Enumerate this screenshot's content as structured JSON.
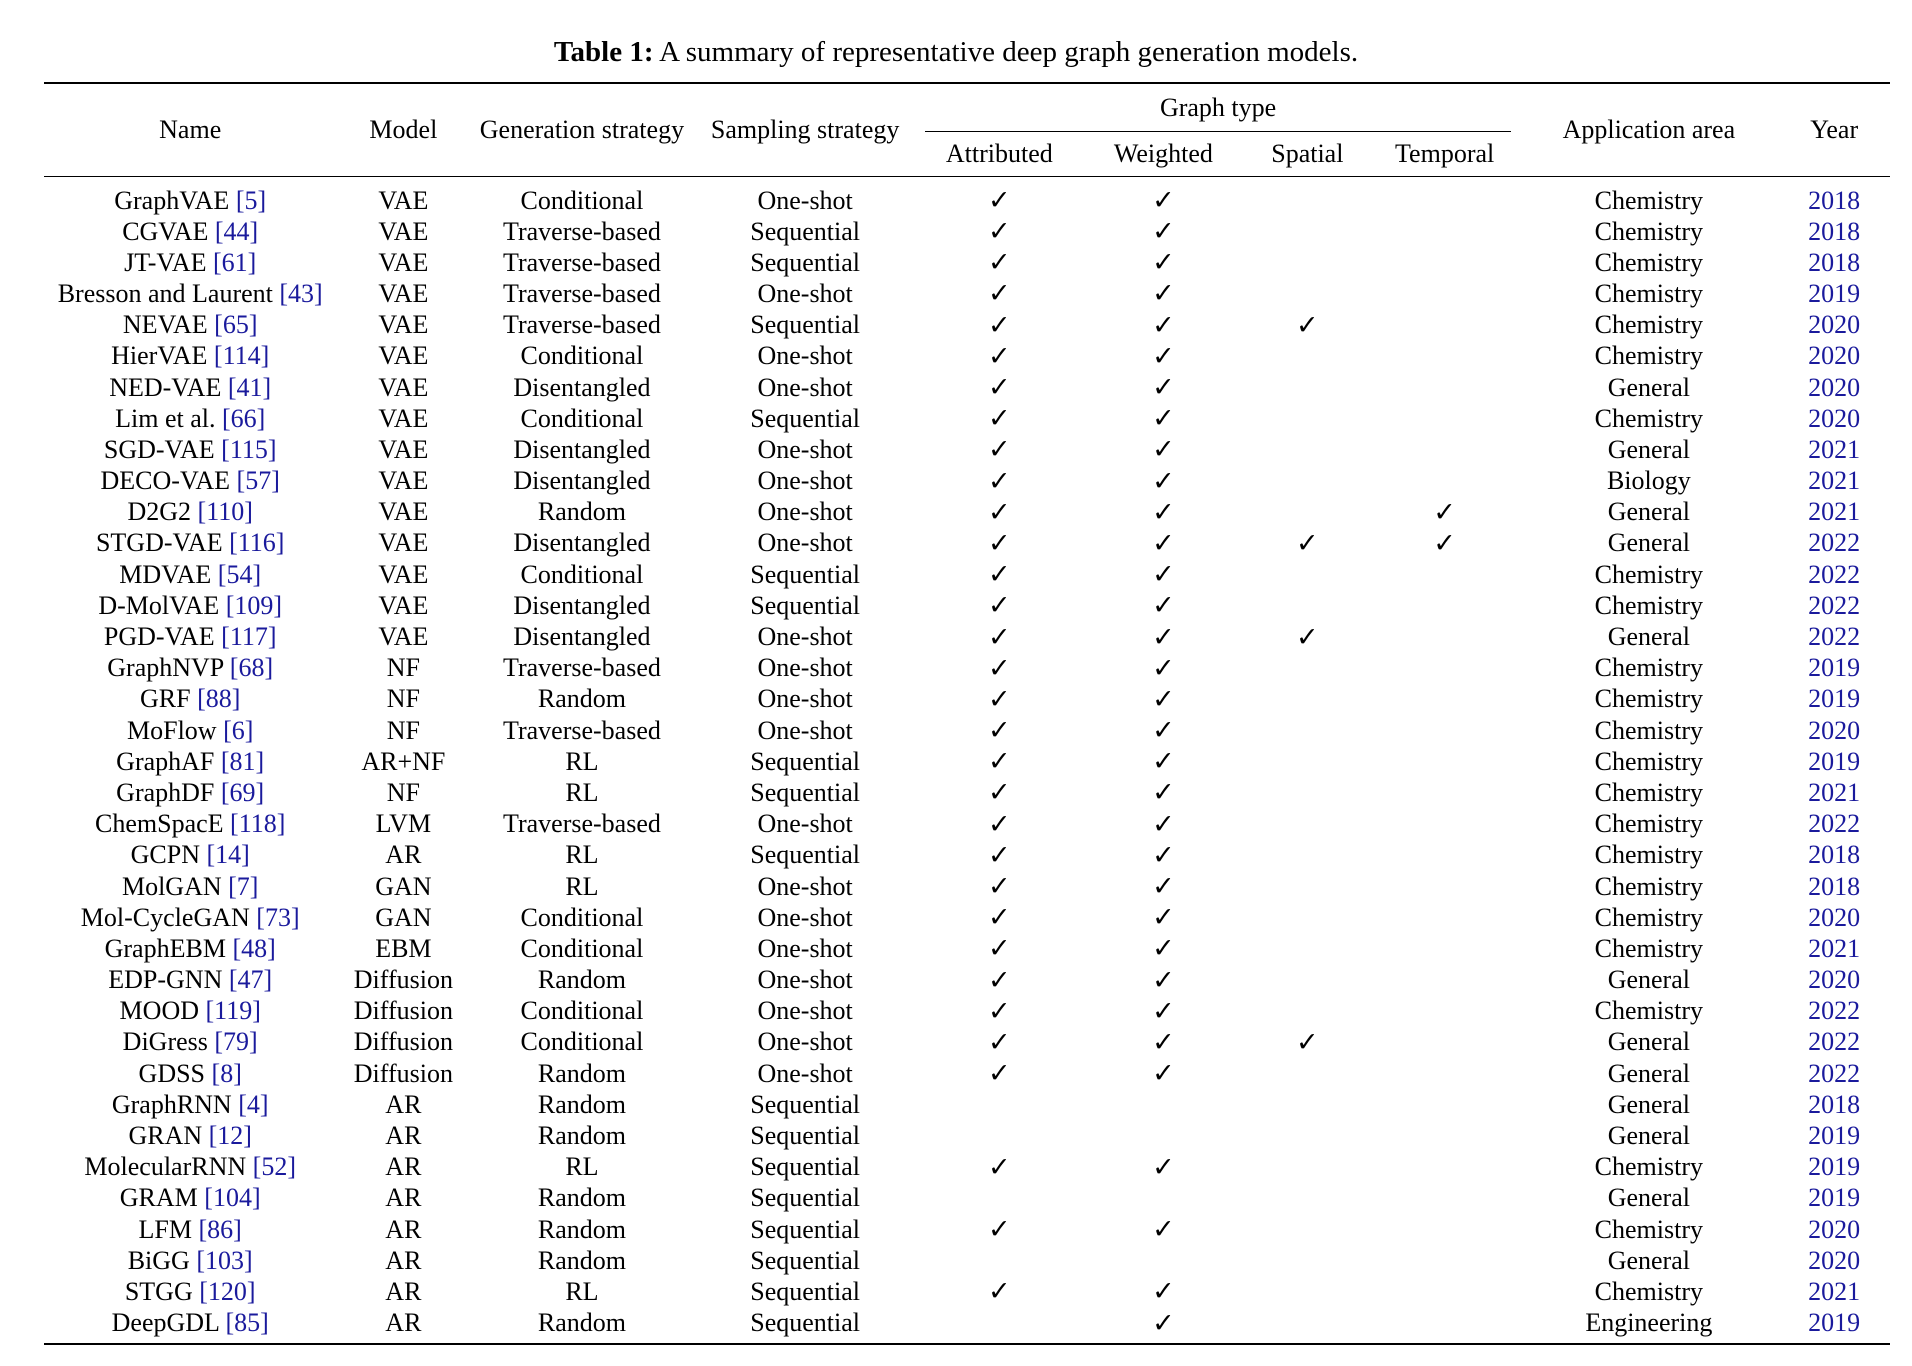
{
  "caption": {
    "label": "Table 1:",
    "text": "A summary of representative deep graph generation models."
  },
  "headers": {
    "name": "Name",
    "model": "Model",
    "generation": "Generation strategy",
    "sampling": "Sampling strategy",
    "graph_type": "Graph type",
    "attributed": "Attributed",
    "weighted": "Weighted",
    "spatial": "Spatial",
    "temporal": "Temporal",
    "application": "Application area",
    "year": "Year"
  },
  "check_symbol": "✓",
  "rows": [
    {
      "name": "GraphVAE",
      "ref": "[5]",
      "model": "VAE",
      "gen": "Conditional",
      "samp": "One-shot",
      "attr": true,
      "weight": true,
      "spatial": false,
      "temporal": false,
      "app": "Chemistry",
      "year": "2018"
    },
    {
      "name": "CGVAE",
      "ref": "[44]",
      "model": "VAE",
      "gen": "Traverse-based",
      "samp": "Sequential",
      "attr": true,
      "weight": true,
      "spatial": false,
      "temporal": false,
      "app": "Chemistry",
      "year": "2018"
    },
    {
      "name": "JT-VAE",
      "ref": "[61]",
      "model": "VAE",
      "gen": "Traverse-based",
      "samp": "Sequential",
      "attr": true,
      "weight": true,
      "spatial": false,
      "temporal": false,
      "app": "Chemistry",
      "year": "2018"
    },
    {
      "name": "Bresson and Laurent",
      "ref": "[43]",
      "model": "VAE",
      "gen": "Traverse-based",
      "samp": "One-shot",
      "attr": true,
      "weight": true,
      "spatial": false,
      "temporal": false,
      "app": "Chemistry",
      "year": "2019"
    },
    {
      "name": "NEVAE",
      "ref": "[65]",
      "model": "VAE",
      "gen": "Traverse-based",
      "samp": "Sequential",
      "attr": true,
      "weight": true,
      "spatial": true,
      "temporal": false,
      "app": "Chemistry",
      "year": "2020"
    },
    {
      "name": "HierVAE",
      "ref": "[114]",
      "model": "VAE",
      "gen": "Conditional",
      "samp": "One-shot",
      "attr": true,
      "weight": true,
      "spatial": false,
      "temporal": false,
      "app": "Chemistry",
      "year": "2020"
    },
    {
      "name": "NED-VAE",
      "ref": "[41]",
      "model": "VAE",
      "gen": "Disentangled",
      "samp": "One-shot",
      "attr": true,
      "weight": true,
      "spatial": false,
      "temporal": false,
      "app": "General",
      "year": "2020"
    },
    {
      "name": "Lim et al.",
      "ref": "[66]",
      "model": "VAE",
      "gen": "Conditional",
      "samp": "Sequential",
      "attr": true,
      "weight": true,
      "spatial": false,
      "temporal": false,
      "app": "Chemistry",
      "year": "2020"
    },
    {
      "name": "SGD-VAE",
      "ref": "[115]",
      "model": "VAE",
      "gen": "Disentangled",
      "samp": "One-shot",
      "attr": true,
      "weight": true,
      "spatial": false,
      "temporal": false,
      "app": "General",
      "year": "2021"
    },
    {
      "name": "DECO-VAE",
      "ref": "[57]",
      "model": "VAE",
      "gen": "Disentangled",
      "samp": "One-shot",
      "attr": true,
      "weight": true,
      "spatial": false,
      "temporal": false,
      "app": "Biology",
      "year": "2021"
    },
    {
      "name": "D2G2",
      "ref": "[110]",
      "model": "VAE",
      "gen": "Random",
      "samp": "One-shot",
      "attr": true,
      "weight": true,
      "spatial": false,
      "temporal": true,
      "app": "General",
      "year": "2021"
    },
    {
      "name": "STGD-VAE",
      "ref": "[116]",
      "model": "VAE",
      "gen": "Disentangled",
      "samp": "One-shot",
      "attr": true,
      "weight": true,
      "spatial": true,
      "temporal": true,
      "app": "General",
      "year": "2022"
    },
    {
      "name": "MDVAE",
      "ref": "[54]",
      "model": "VAE",
      "gen": "Conditional",
      "samp": "Sequential",
      "attr": true,
      "weight": true,
      "spatial": false,
      "temporal": false,
      "app": "Chemistry",
      "year": "2022"
    },
    {
      "name": "D-MolVAE",
      "ref": "[109]",
      "model": "VAE",
      "gen": "Disentangled",
      "samp": "Sequential",
      "attr": true,
      "weight": true,
      "spatial": false,
      "temporal": false,
      "app": "Chemistry",
      "year": "2022"
    },
    {
      "name": "PGD-VAE",
      "ref": "[117]",
      "model": "VAE",
      "gen": "Disentangled",
      "samp": "One-shot",
      "attr": true,
      "weight": true,
      "spatial": true,
      "temporal": false,
      "app": "General",
      "year": "2022"
    },
    {
      "name": "GraphNVP",
      "ref": "[68]",
      "model": "NF",
      "gen": "Traverse-based",
      "samp": "One-shot",
      "attr": true,
      "weight": true,
      "spatial": false,
      "temporal": false,
      "app": "Chemistry",
      "year": "2019"
    },
    {
      "name": "GRF",
      "ref": "[88]",
      "model": "NF",
      "gen": "Random",
      "samp": "One-shot",
      "attr": true,
      "weight": true,
      "spatial": false,
      "temporal": false,
      "app": "Chemistry",
      "year": "2019"
    },
    {
      "name": "MoFlow",
      "ref": "[6]",
      "model": "NF",
      "gen": "Traverse-based",
      "samp": "One-shot",
      "attr": true,
      "weight": true,
      "spatial": false,
      "temporal": false,
      "app": "Chemistry",
      "year": "2020"
    },
    {
      "name": "GraphAF",
      "ref": "[81]",
      "model": "AR+NF",
      "gen": "RL",
      "samp": "Sequential",
      "attr": true,
      "weight": true,
      "spatial": false,
      "temporal": false,
      "app": "Chemistry",
      "year": "2019"
    },
    {
      "name": "GraphDF",
      "ref": "[69]",
      "model": "NF",
      "gen": "RL",
      "samp": "Sequential",
      "attr": true,
      "weight": true,
      "spatial": false,
      "temporal": false,
      "app": "Chemistry",
      "year": "2021"
    },
    {
      "name": "ChemSpacE",
      "ref": "[118]",
      "model": "LVM",
      "gen": "Traverse-based",
      "samp": "One-shot",
      "attr": true,
      "weight": true,
      "spatial": false,
      "temporal": false,
      "app": "Chemistry",
      "year": "2022"
    },
    {
      "name": "GCPN",
      "ref": "[14]",
      "model": "AR",
      "gen": "RL",
      "samp": "Sequential",
      "attr": true,
      "weight": true,
      "spatial": false,
      "temporal": false,
      "app": "Chemistry",
      "year": "2018"
    },
    {
      "name": "MolGAN",
      "ref": "[7]",
      "model": "GAN",
      "gen": "RL",
      "samp": "One-shot",
      "attr": true,
      "weight": true,
      "spatial": false,
      "temporal": false,
      "app": "Chemistry",
      "year": "2018"
    },
    {
      "name": "Mol-CycleGAN",
      "ref": "[73]",
      "model": "GAN",
      "gen": "Conditional",
      "samp": "One-shot",
      "attr": true,
      "weight": true,
      "spatial": false,
      "temporal": false,
      "app": "Chemistry",
      "year": "2020"
    },
    {
      "name": "GraphEBM",
      "ref": "[48]",
      "model": "EBM",
      "gen": "Conditional",
      "samp": "One-shot",
      "attr": true,
      "weight": true,
      "spatial": false,
      "temporal": false,
      "app": "Chemistry",
      "year": "2021"
    },
    {
      "name": "EDP-GNN",
      "ref": "[47]",
      "model": "Diffusion",
      "gen": "Random",
      "samp": "One-shot",
      "attr": true,
      "weight": true,
      "spatial": false,
      "temporal": false,
      "app": "General",
      "year": "2020"
    },
    {
      "name": "MOOD",
      "ref": "[119]",
      "model": "Diffusion",
      "gen": "Conditional",
      "samp": "One-shot",
      "attr": true,
      "weight": true,
      "spatial": false,
      "temporal": false,
      "app": "Chemistry",
      "year": "2022"
    },
    {
      "name": "DiGress",
      "ref": "[79]",
      "model": "Diffusion",
      "gen": "Conditional",
      "samp": "One-shot",
      "attr": true,
      "weight": true,
      "spatial": true,
      "temporal": false,
      "app": "General",
      "year": "2022"
    },
    {
      "name": "GDSS",
      "ref": "[8]",
      "model": "Diffusion",
      "gen": "Random",
      "samp": "One-shot",
      "attr": true,
      "weight": true,
      "spatial": false,
      "temporal": false,
      "app": "General",
      "year": "2022"
    },
    {
      "name": "GraphRNN",
      "ref": "[4]",
      "model": "AR",
      "gen": "Random",
      "samp": "Sequential",
      "attr": false,
      "weight": false,
      "spatial": false,
      "temporal": false,
      "app": "General",
      "year": "2018"
    },
    {
      "name": "GRAN",
      "ref": "[12]",
      "model": "AR",
      "gen": "Random",
      "samp": "Sequential",
      "attr": false,
      "weight": false,
      "spatial": false,
      "temporal": false,
      "app": "General",
      "year": "2019"
    },
    {
      "name": "MolecularRNN",
      "ref": "[52]",
      "model": "AR",
      "gen": "RL",
      "samp": "Sequential",
      "attr": true,
      "weight": true,
      "spatial": false,
      "temporal": false,
      "app": "Chemistry",
      "year": "2019"
    },
    {
      "name": "GRAM",
      "ref": "[104]",
      "model": "AR",
      "gen": "Random",
      "samp": "Sequential",
      "attr": false,
      "weight": false,
      "spatial": false,
      "temporal": false,
      "app": "General",
      "year": "2019"
    },
    {
      "name": "LFM",
      "ref": "[86]",
      "model": "AR",
      "gen": "Random",
      "samp": "Sequential",
      "attr": true,
      "weight": true,
      "spatial": false,
      "temporal": false,
      "app": "Chemistry",
      "year": "2020"
    },
    {
      "name": "BiGG",
      "ref": "[103]",
      "model": "AR",
      "gen": "Random",
      "samp": "Sequential",
      "attr": false,
      "weight": false,
      "spatial": false,
      "temporal": false,
      "app": "General",
      "year": "2020"
    },
    {
      "name": "STGG",
      "ref": "[120]",
      "model": "AR",
      "gen": "RL",
      "samp": "Sequential",
      "attr": true,
      "weight": true,
      "spatial": false,
      "temporal": false,
      "app": "Chemistry",
      "year": "2021"
    },
    {
      "name": "DeepGDL",
      "ref": "[85]",
      "model": "AR",
      "gen": "Random",
      "samp": "Sequential",
      "attr": false,
      "weight": true,
      "spatial": false,
      "temporal": false,
      "app": "Engineering",
      "year": "2019"
    }
  ]
}
